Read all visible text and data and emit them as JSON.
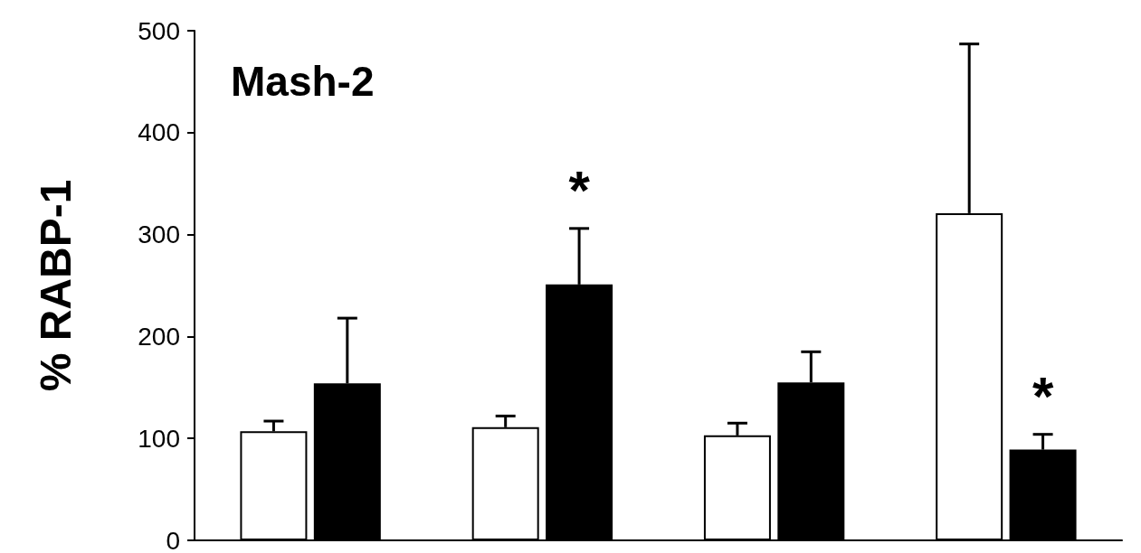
{
  "chart_data": {
    "type": "bar",
    "title": "Mash-2",
    "ylabel": "% RABP-1",
    "categories": [
      null,
      null,
      null,
      null
    ],
    "series": [
      {
        "color": "#ffffff",
        "values": [
          107,
          111,
          103,
          321
        ],
        "errors": [
          [
            107,
            117
          ],
          [
            111,
            122
          ],
          [
            103,
            115
          ],
          [
            321,
            487
          ]
        ]
      },
      {
        "color": "#000000",
        "values": [
          154,
          251,
          155,
          89
        ],
        "errors": [
          [
            154,
            218
          ],
          [
            251,
            306
          ],
          [
            155,
            185
          ],
          [
            89,
            104
          ]
        ],
        "value_labels": [
          null,
          "*",
          null,
          "*"
        ]
      }
    ],
    "ylim": [
      0,
      500
    ],
    "yticks": [
      0,
      100,
      200,
      300,
      400,
      500
    ],
    "grid": false,
    "tick_labels": "y"
  }
}
